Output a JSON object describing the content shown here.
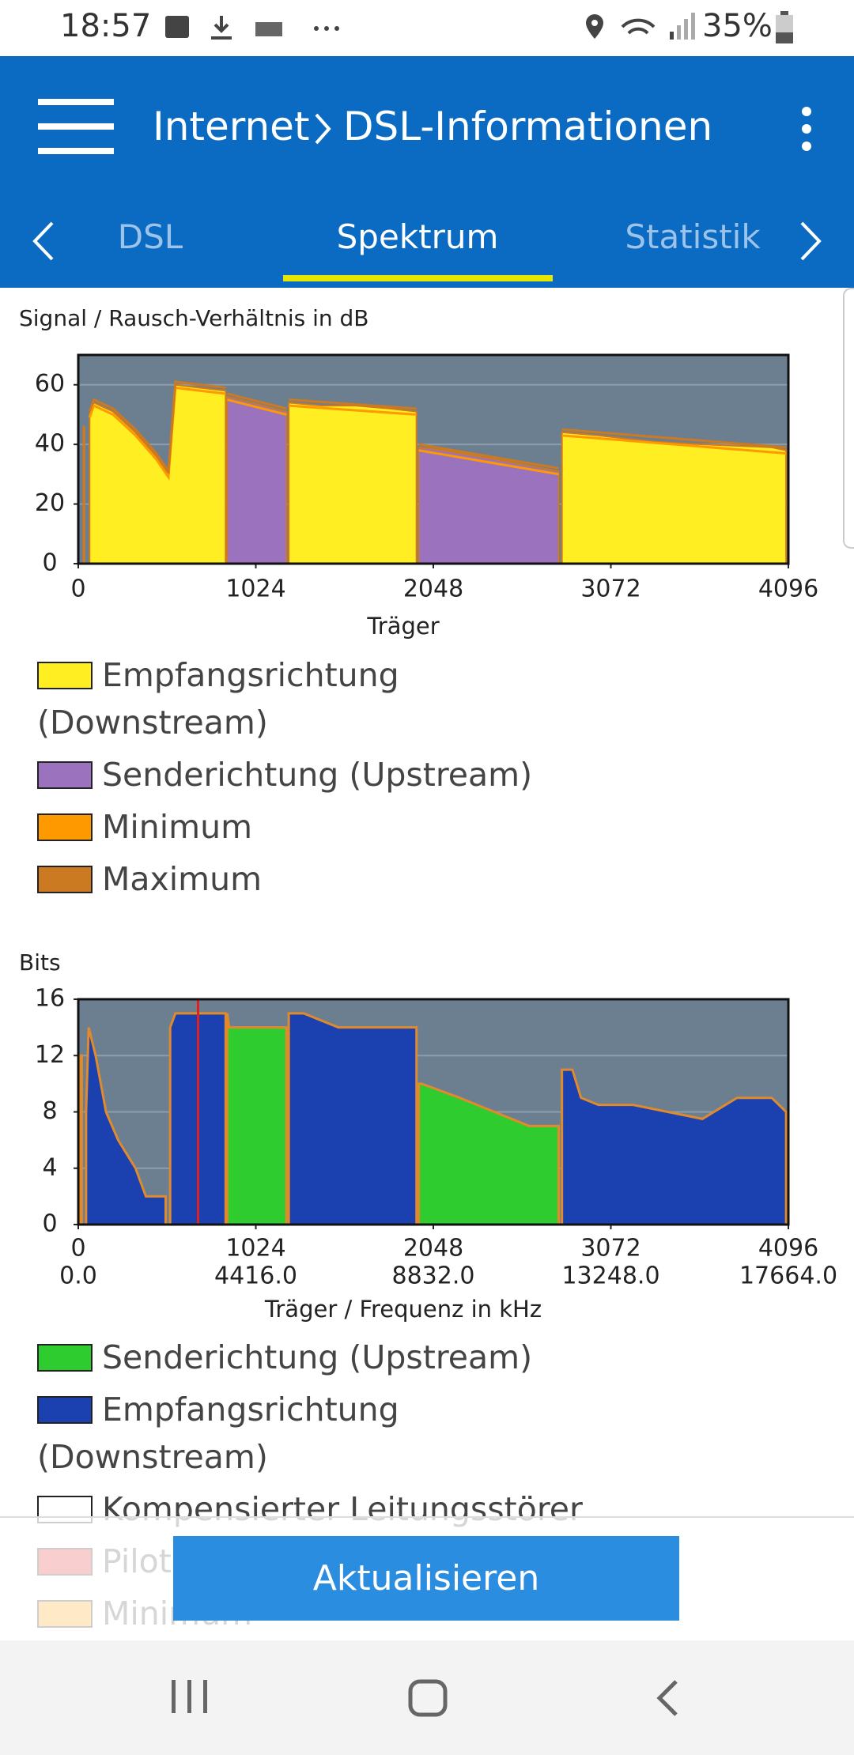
{
  "status_bar": {
    "time": "18:57",
    "battery": "35%"
  },
  "header": {
    "title_parts": [
      "Internet",
      "DSL-Informationen"
    ]
  },
  "tabs": {
    "items": [
      "DSL",
      "Spektrum",
      "Statistik"
    ],
    "active": 1
  },
  "charts": [
    {
      "type": "area",
      "title": "Signal / Rausch-Verhältnis in dB",
      "xlabel": "Träger",
      "xlim": [
        0,
        4096
      ],
      "xticks": [
        0,
        1024,
        2048,
        3072,
        4096
      ],
      "ylim": [
        0,
        70
      ],
      "yticks": [
        0,
        20,
        40,
        60
      ],
      "grid": true,
      "series": [
        {
          "name": "Empfangsrichtung (Downstream)",
          "color": "#ffee22",
          "mark": "area",
          "x": [
            30,
            36,
            null,
            65,
            90,
            200,
            330,
            450,
            510,
            520,
            545,
            560,
            700,
            850,
            null,
            1214,
            1400,
            1600,
            1800,
            1951,
            null,
            2790,
            2800,
            3000,
            3300,
            3600,
            4000,
            4083
          ],
          "values": [
            46,
            46,
            null,
            50,
            54,
            51,
            44,
            36,
            31,
            30,
            50,
            60,
            59,
            58,
            null,
            54,
            53,
            53,
            52,
            51,
            null,
            44,
            44,
            43,
            41,
            40,
            39,
            38
          ]
        },
        {
          "name": "Senderichtung (Upstream)",
          "color": "#9b72bd",
          "mark": "area",
          "x": [
            859,
            1000,
            1201,
            null,
            1964,
            2100,
            2400,
            2771
          ],
          "values": [
            56,
            54,
            51,
            null,
            39,
            38,
            35,
            31
          ]
        },
        {
          "name": "Minimum",
          "color": "#ff9900",
          "mark": "line",
          "x": [
            65,
            90,
            200,
            330,
            450,
            520,
            560,
            850,
            null,
            859,
            1201,
            null,
            1214,
            1951,
            null,
            1964,
            2771,
            null,
            2790,
            4083
          ],
          "values": [
            49,
            53,
            50,
            43,
            35,
            29,
            59,
            57,
            null,
            55,
            50,
            null,
            53,
            50,
            null,
            38,
            30,
            null,
            43,
            37
          ]
        },
        {
          "name": "Maximum",
          "color": "#cc7a22",
          "mark": "line",
          "x": [
            65,
            90,
            200,
            330,
            450,
            520,
            560,
            850,
            null,
            859,
            1201,
            null,
            1214,
            1951,
            null,
            1964,
            2771,
            null,
            2790,
            4083
          ],
          "values": [
            51,
            55,
            52,
            45,
            37,
            31,
            61,
            59,
            null,
            57,
            52,
            null,
            55,
            52,
            null,
            40,
            32,
            null,
            45,
            39
          ]
        }
      ]
    },
    {
      "type": "area",
      "title": "Bits",
      "xlabel": "Träger / Frequenz in kHz",
      "outline": "#e08a2c",
      "xlim": [
        0,
        4096
      ],
      "xticks": [
        0,
        1024,
        2048,
        3072,
        4096
      ],
      "x2ticks": [
        {
          "value": 0,
          "label": "0.0"
        },
        {
          "value": 1024,
          "label": "4416.0"
        },
        {
          "value": 2048,
          "label": "8832.0"
        },
        {
          "value": 3072,
          "label": "13248.0"
        },
        {
          "value": 4096,
          "label": "17664.0"
        }
      ],
      "ylim": [
        0,
        16
      ],
      "yticks": [
        0,
        4,
        8,
        12,
        16
      ],
      "grid": true,
      "series": [
        {
          "name": "Senderichtung (Upstream)",
          "color": "#2ecc2e",
          "mark": "area",
          "x": [
            10,
            20,
            null,
            859,
            870,
            1201,
            null,
            1964,
            1980,
            2200,
            2400,
            2600,
            2771
          ],
          "values": [
            12,
            12,
            null,
            15,
            14,
            14,
            null,
            10,
            10,
            9,
            8,
            7,
            7
          ]
        },
        {
          "name": "Empfangsrichtung (Downstream)",
          "color": "#1b40b0",
          "mark": "area",
          "x": [
            45,
            60,
            100,
            160,
            230,
            330,
            390,
            480,
            504,
            null,
            530,
            560,
            850,
            null,
            1214,
            1300,
            1500,
            1700,
            1951,
            null,
            2790,
            2850,
            2900,
            3000,
            3200,
            3400,
            3600,
            3800,
            4000,
            4083
          ],
          "values": [
            8,
            14,
            12,
            8,
            6,
            4,
            2,
            2,
            2,
            null,
            14,
            15,
            15,
            null,
            15,
            15,
            14,
            14,
            14,
            null,
            11,
            11,
            9,
            8.5,
            8.5,
            8,
            7.5,
            9,
            9,
            8
          ]
        },
        {
          "name": "Kompensierter Leitungsstörer",
          "color": "#ffffff",
          "mark": "area",
          "x": [],
          "values": []
        },
        {
          "name": "Pilot",
          "color": "#e02020",
          "mark": "vline",
          "x": [
            691
          ]
        },
        {
          "name": "Minimum",
          "color": "#ff9900",
          "mark": "line",
          "x": [],
          "values": []
        }
      ]
    }
  ],
  "button": "Aktualisieren"
}
